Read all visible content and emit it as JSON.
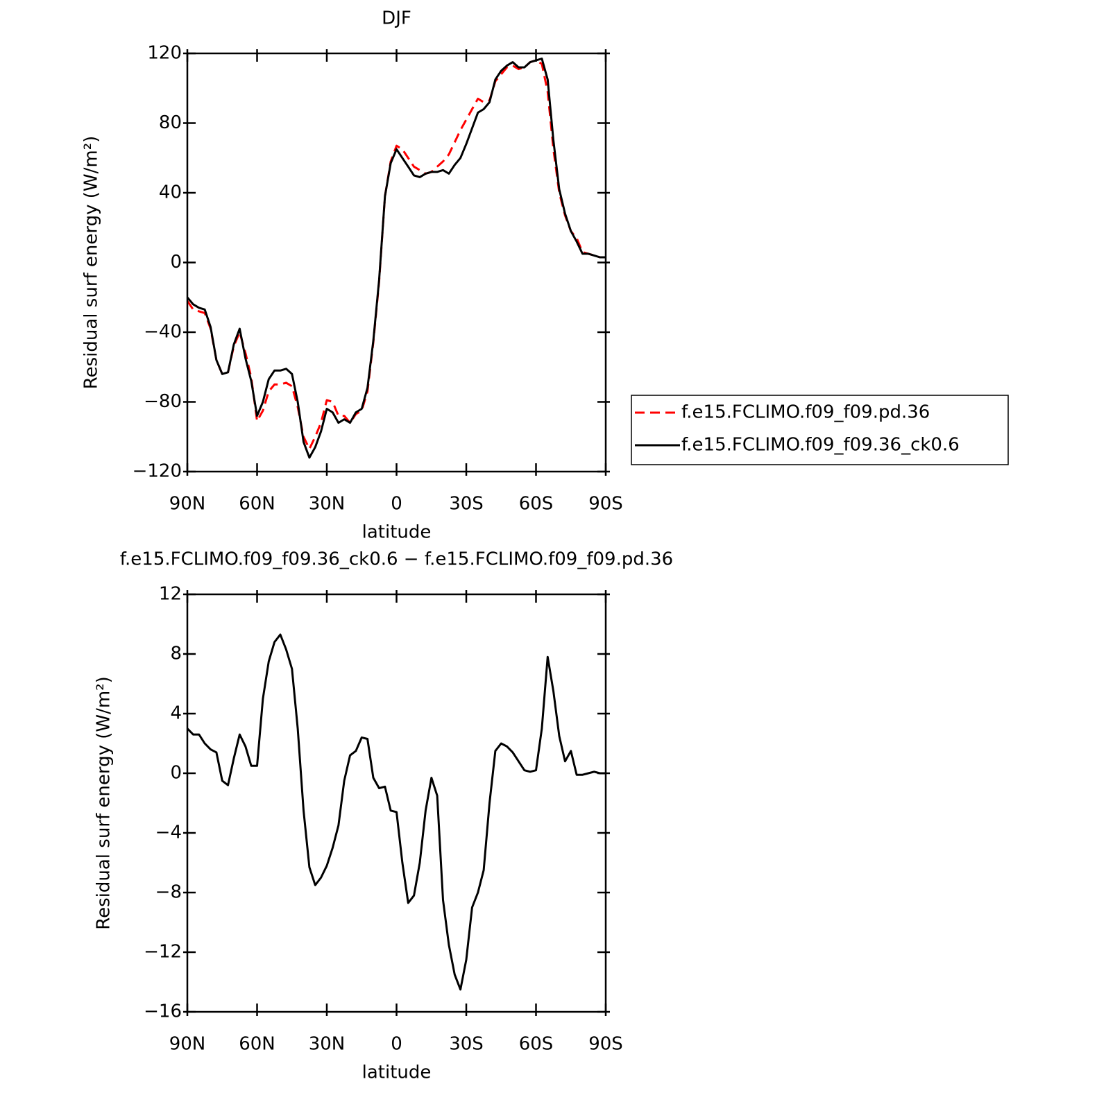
{
  "chart_data": [
    {
      "type": "line",
      "title": "DJF",
      "xlabel": "latitude",
      "ylabel": "Residual surf energy (W/m²)",
      "x": [
        90,
        87.5,
        85,
        82.5,
        80,
        77.5,
        75,
        72.5,
        70,
        67.5,
        65,
        62.5,
        60,
        57.5,
        55,
        52.5,
        50,
        47.5,
        45,
        42.5,
        40,
        37.5,
        35,
        32.5,
        30,
        27.5,
        25,
        22.5,
        20,
        17.5,
        15,
        12.5,
        10,
        7.5,
        5,
        2.5,
        0,
        -2.5,
        -5,
        -7.5,
        -10,
        -12.5,
        -15,
        -17.5,
        -20,
        -22.5,
        -25,
        -27.5,
        -30,
        -32.5,
        -35,
        -37.5,
        -40,
        -42.5,
        -45,
        -47.5,
        -50,
        -52.5,
        -55,
        -57.5,
        -60,
        -62.5,
        -65,
        -67.5,
        -70,
        -72.5,
        -75,
        -77.5,
        -80,
        -82.5,
        -85,
        -87.5,
        -90
      ],
      "series": [
        {
          "name": "f.e15.FCLIMO.f09_f09.pd.36",
          "color": "#ff0000",
          "line_style": "dashed",
          "values": [
            -22,
            -27,
            -28,
            -29,
            -38,
            -56,
            -64,
            -63,
            -48,
            -40,
            -52,
            -66,
            -91,
            -85,
            -74,
            -70,
            -70,
            -69,
            -71,
            -83,
            -100,
            -107,
            -100,
            -92,
            -79,
            -80,
            -88,
            -88,
            -92,
            -87,
            -85,
            -74,
            -46,
            -11,
            38,
            58,
            67,
            65,
            60,
            55,
            53,
            51,
            52,
            55,
            58,
            62,
            69,
            76,
            82,
            88,
            94,
            92,
            93,
            104,
            108,
            112,
            113,
            111,
            112,
            115,
            116,
            114,
            98,
            65,
            40,
            27,
            18,
            14,
            6,
            5,
            4,
            3,
            3
          ]
        },
        {
          "name": "f.e15.FCLIMO.f09_f09.36_ck0.6",
          "color": "#000000",
          "line_style": "solid",
          "values": [
            -20,
            -24,
            -26,
            -27,
            -37,
            -56,
            -64,
            -63,
            -47,
            -38,
            -55,
            -68,
            -88,
            -80,
            -67,
            -62,
            -62,
            -61,
            -64,
            -80,
            -103,
            -112,
            -106,
            -97,
            -84,
            -86,
            -92,
            -90,
            -92,
            -86,
            -84,
            -72,
            -45,
            -10,
            38,
            57,
            65,
            60,
            55,
            50,
            49,
            51,
            52,
            52,
            53,
            51,
            56,
            60,
            68,
            77,
            86,
            88,
            92,
            105,
            110,
            113,
            115,
            112,
            112,
            115,
            116,
            117,
            105,
            70,
            42,
            28,
            18,
            12,
            5,
            5,
            4,
            3,
            3
          ]
        }
      ],
      "xlim": [
        90,
        -90
      ],
      "xticks": [
        {
          "value": 90,
          "label": "90N"
        },
        {
          "value": 60,
          "label": "60N"
        },
        {
          "value": 30,
          "label": "30N"
        },
        0,
        {
          "value": -30,
          "label": "30S"
        },
        {
          "value": -60,
          "label": "60S"
        },
        {
          "value": -90,
          "label": "90S"
        }
      ],
      "ylim": [
        -120,
        120
      ],
      "yticks": [
        {
          "value": -120,
          "label": "−120"
        },
        {
          "value": -80,
          "label": "−80"
        },
        {
          "value": -40,
          "label": "−40"
        },
        0,
        40,
        80,
        120
      ],
      "legend": "right"
    },
    {
      "type": "line",
      "title": "f.e15.FCLIMO.f09_f09.36_ck0.6 − f.e15.FCLIMO.f09_f09.pd.36",
      "xlabel": "latitude",
      "ylabel": "Residual surf energy (W/m²)",
      "x": [
        90,
        87.5,
        85,
        82.5,
        80,
        77.5,
        75,
        72.5,
        70,
        67.5,
        65,
        62.5,
        60,
        57.5,
        55,
        52.5,
        50,
        47.5,
        45,
        42.5,
        40,
        37.5,
        35,
        32.5,
        30,
        27.5,
        25,
        22.5,
        20,
        17.5,
        15,
        12.5,
        10,
        7.5,
        5,
        2.5,
        0,
        -2.5,
        -5,
        -7.5,
        -10,
        -12.5,
        -15,
        -17.5,
        -20,
        -22.5,
        -25,
        -27.5,
        -30,
        -32.5,
        -35,
        -37.5,
        -40,
        -42.5,
        -45,
        -47.5,
        -50,
        -52.5,
        -55,
        -57.5,
        -60,
        -62.5,
        -65,
        -67.5,
        -70,
        -72.5,
        -75,
        -77.5,
        -80,
        -82.5,
        -85,
        -87.5,
        -90
      ],
      "series": [
        {
          "color": "#000000",
          "line_style": "solid",
          "values": [
            3.0,
            2.6,
            2.6,
            2.0,
            1.6,
            1.4,
            -0.5,
            -0.8,
            1.0,
            2.6,
            1.8,
            0.5,
            0.5,
            5.0,
            7.5,
            8.8,
            9.3,
            8.3,
            7.0,
            3.0,
            -2.5,
            -6.3,
            -7.5,
            -7.0,
            -6.2,
            -5.0,
            -3.5,
            -0.5,
            1.2,
            1.5,
            2.4,
            2.3,
            -0.3,
            -1.0,
            -0.9,
            -2.5,
            -2.6,
            -6.0,
            -8.7,
            -8.2,
            -6.0,
            -2.5,
            -0.3,
            -1.5,
            -8.5,
            -11.5,
            -13.5,
            -14.5,
            -12.5,
            -9.0,
            -8.0,
            -6.5,
            -2.0,
            1.5,
            2.0,
            1.8,
            1.4,
            0.8,
            0.2,
            0.1,
            0.2,
            3.0,
            7.8,
            5.5,
            2.5,
            0.8,
            1.5,
            -0.1,
            -0.1,
            0.0,
            0.1,
            0.0,
            0.0
          ]
        }
      ],
      "xlim": [
        90,
        -90
      ],
      "xticks": [
        {
          "value": 90,
          "label": "90N"
        },
        {
          "value": 60,
          "label": "60N"
        },
        {
          "value": 30,
          "label": "30N"
        },
        0,
        {
          "value": -30,
          "label": "30S"
        },
        {
          "value": -60,
          "label": "60S"
        },
        {
          "value": -90,
          "label": "90S"
        }
      ],
      "ylim": [
        -16,
        12
      ],
      "yticks": [
        {
          "value": -16,
          "label": "−16"
        },
        {
          "value": -12,
          "label": "−12"
        },
        {
          "value": -8,
          "label": "−8"
        },
        {
          "value": -4,
          "label": "−4"
        },
        0,
        4,
        8,
        12
      ]
    }
  ]
}
